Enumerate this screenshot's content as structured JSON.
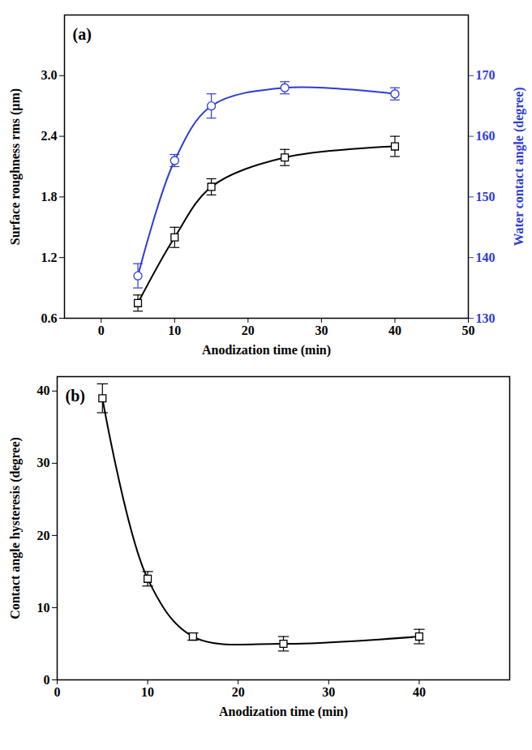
{
  "chart_data": [
    {
      "type": "line",
      "panel": "(a)",
      "x_label": "Anodization time (min)",
      "y_label": "Surface roughness rms (µm)",
      "y2_label": "Water contact angle (degree)",
      "x": [
        5,
        10,
        15,
        25,
        40
      ],
      "xlim": [
        -5,
        50
      ],
      "xticks": [
        0,
        10,
        20,
        30,
        40,
        50
      ],
      "ylim": [
        0.6,
        3.6
      ],
      "yticks": [
        0.6,
        1.2,
        1.8,
        2.4,
        {
          "value": 3,
          "label": "3.0"
        }
      ],
      "y2lim": [
        130,
        180
      ],
      "y2ticks": [
        130,
        140,
        150,
        160,
        170
      ],
      "grid": false,
      "series": [
        {
          "color": "#000000",
          "marker": "square",
          "line_style": "solid",
          "values": [
            0.75,
            1.4,
            1.9,
            2.19,
            2.3
          ],
          "errors": [
            0.08,
            0.1,
            0.08,
            0.08,
            0.1
          ]
        },
        {
          "color": "#2e3bd6",
          "marker": "circle",
          "line_style": "solid",
          "axis": "y2",
          "values": [
            137,
            156,
            165,
            168,
            167
          ],
          "errors": [
            2,
            1,
            2,
            1,
            1
          ]
        }
      ]
    },
    {
      "type": "line",
      "panel": "(b)",
      "x_label": "Anodization time (min)",
      "y_label": "Contact angle hysteresis (degree)",
      "x": [
        5,
        10,
        15,
        25,
        40
      ],
      "xlim": [
        0,
        50
      ],
      "xticks": [
        0,
        10,
        20,
        30,
        40
      ],
      "ylim": [
        0,
        42
      ],
      "yticks": [
        0,
        10,
        20,
        30,
        40
      ],
      "grid": false,
      "series": [
        {
          "color": "#000000",
          "marker": "square",
          "line_style": "solid",
          "values": [
            39,
            14,
            6,
            5,
            6
          ],
          "errors": [
            2,
            1,
            0.5,
            1,
            1
          ]
        }
      ]
    }
  ]
}
